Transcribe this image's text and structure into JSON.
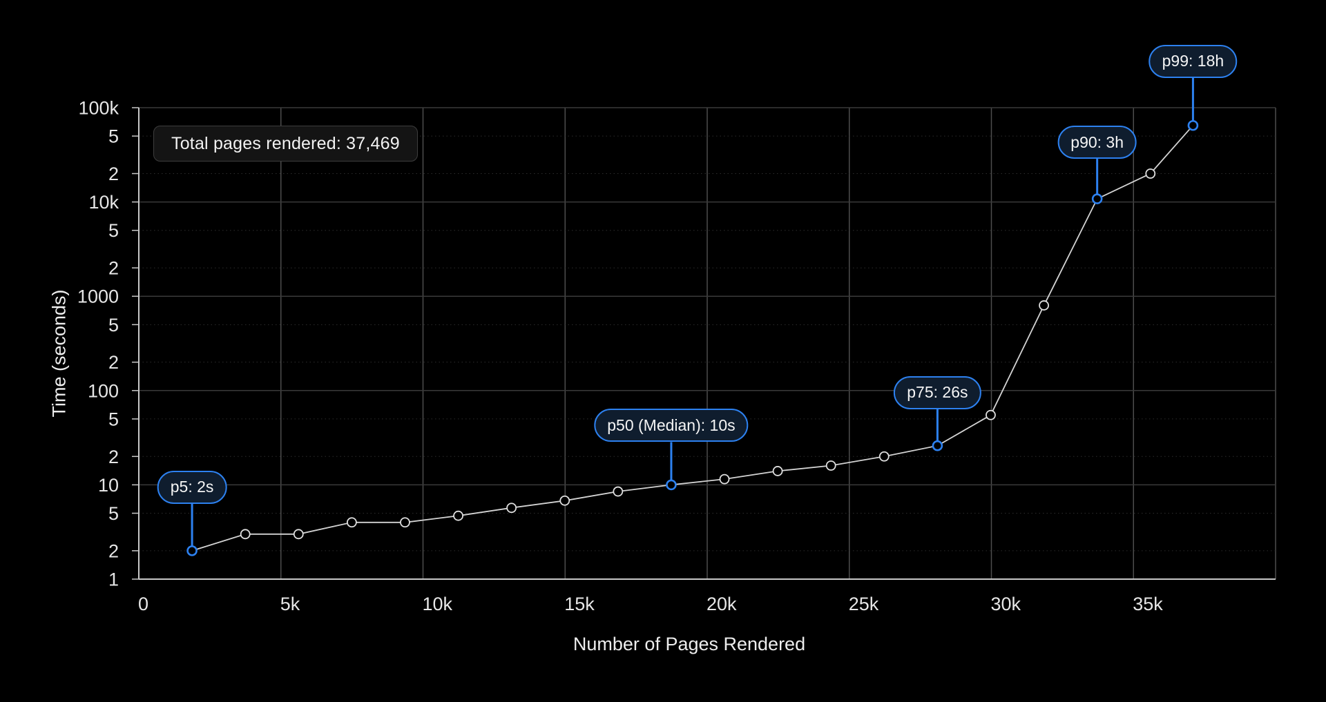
{
  "title_box": {
    "label": "Total pages rendered: 37,469"
  },
  "chart_data": {
    "type": "line",
    "title": "",
    "x_label": "Number of Pages Rendered",
    "y_label": "Time (seconds)",
    "x_scale": "linear",
    "y_scale": "log",
    "x_range": [
      0,
      40000
    ],
    "y_range": [
      1,
      100000
    ],
    "grid": true,
    "legend": "none",
    "total_pages_rendered": 37469,
    "x_ticks": [
      {
        "v": 0,
        "label": "0"
      },
      {
        "v": 5000,
        "label": "5k"
      },
      {
        "v": 10000,
        "label": "10k"
      },
      {
        "v": 15000,
        "label": "15k"
      },
      {
        "v": 20000,
        "label": "20k"
      },
      {
        "v": 25000,
        "label": "25k"
      },
      {
        "v": 30000,
        "label": "30k"
      },
      {
        "v": 35000,
        "label": "35k"
      }
    ],
    "y_ticks": [
      {
        "v": 1,
        "label": "1"
      },
      {
        "v": 2,
        "label": "2"
      },
      {
        "v": 5,
        "label": "5"
      },
      {
        "v": 10,
        "label": "10"
      },
      {
        "v": 20,
        "label": "2"
      },
      {
        "v": 50,
        "label": "5"
      },
      {
        "v": 100,
        "label": "100"
      },
      {
        "v": 200,
        "label": "2"
      },
      {
        "v": 500,
        "label": "5"
      },
      {
        "v": 1000,
        "label": "1000"
      },
      {
        "v": 2000,
        "label": "2"
      },
      {
        "v": 5000,
        "label": "5"
      },
      {
        "v": 10000,
        "label": "10k"
      },
      {
        "v": 20000,
        "label": "2"
      },
      {
        "v": 50000,
        "label": "5"
      },
      {
        "v": 100000,
        "label": "100k"
      }
    ],
    "points": [
      {
        "percentile": 5,
        "pages": 1873,
        "seconds": 2
      },
      {
        "percentile": 10,
        "pages": 3747,
        "seconds": 3
      },
      {
        "percentile": 15,
        "pages": 5620,
        "seconds": 3
      },
      {
        "percentile": 20,
        "pages": 7494,
        "seconds": 4
      },
      {
        "percentile": 25,
        "pages": 9367,
        "seconds": 4
      },
      {
        "percentile": 30,
        "pages": 11241,
        "seconds": 4.7
      },
      {
        "percentile": 35,
        "pages": 13114,
        "seconds": 5.7
      },
      {
        "percentile": 40,
        "pages": 14988,
        "seconds": 6.8
      },
      {
        "percentile": 45,
        "pages": 16861,
        "seconds": 8.5
      },
      {
        "percentile": 50,
        "pages": 18735,
        "seconds": 10
      },
      {
        "percentile": 55,
        "pages": 20608,
        "seconds": 11.5
      },
      {
        "percentile": 60,
        "pages": 22481,
        "seconds": 14
      },
      {
        "percentile": 65,
        "pages": 24355,
        "seconds": 16
      },
      {
        "percentile": 70,
        "pages": 26228,
        "seconds": 20
      },
      {
        "percentile": 75,
        "pages": 28102,
        "seconds": 26
      },
      {
        "percentile": 80,
        "pages": 29975,
        "seconds": 55
      },
      {
        "percentile": 85,
        "pages": 31849,
        "seconds": 800
      },
      {
        "percentile": 90,
        "pages": 33722,
        "seconds": 10800
      },
      {
        "percentile": 95,
        "pages": 35596,
        "seconds": 20000
      },
      {
        "percentile": 99,
        "pages": 37094,
        "seconds": 64800
      }
    ],
    "annotations": [
      {
        "percentile": 5,
        "label": "p5: 2s",
        "gap": 68
      },
      {
        "percentile": 50,
        "label": "p50 (Median): 10s",
        "gap": 62
      },
      {
        "percentile": 75,
        "label": "p75: 26s",
        "gap": 53
      },
      {
        "percentile": 90,
        "label": "p90: 3h",
        "gap": 58
      },
      {
        "percentile": 99,
        "label": "p99: 18h",
        "gap": 69
      }
    ]
  },
  "colors": {
    "background": "#000000",
    "accent_blue": "#2d81f0",
    "pill_fill": "#0f1d2e",
    "series_line": "#d4d4d4",
    "marker_stroke": "#e0e0e0",
    "marker_fill": "#000000",
    "grid_vertical": "#4d4d4d",
    "grid_major": "#3a3a3a",
    "grid_minor": "#2e2e2e",
    "spine": "#c9c9c9",
    "tick_text": "#e6e6e6"
  }
}
